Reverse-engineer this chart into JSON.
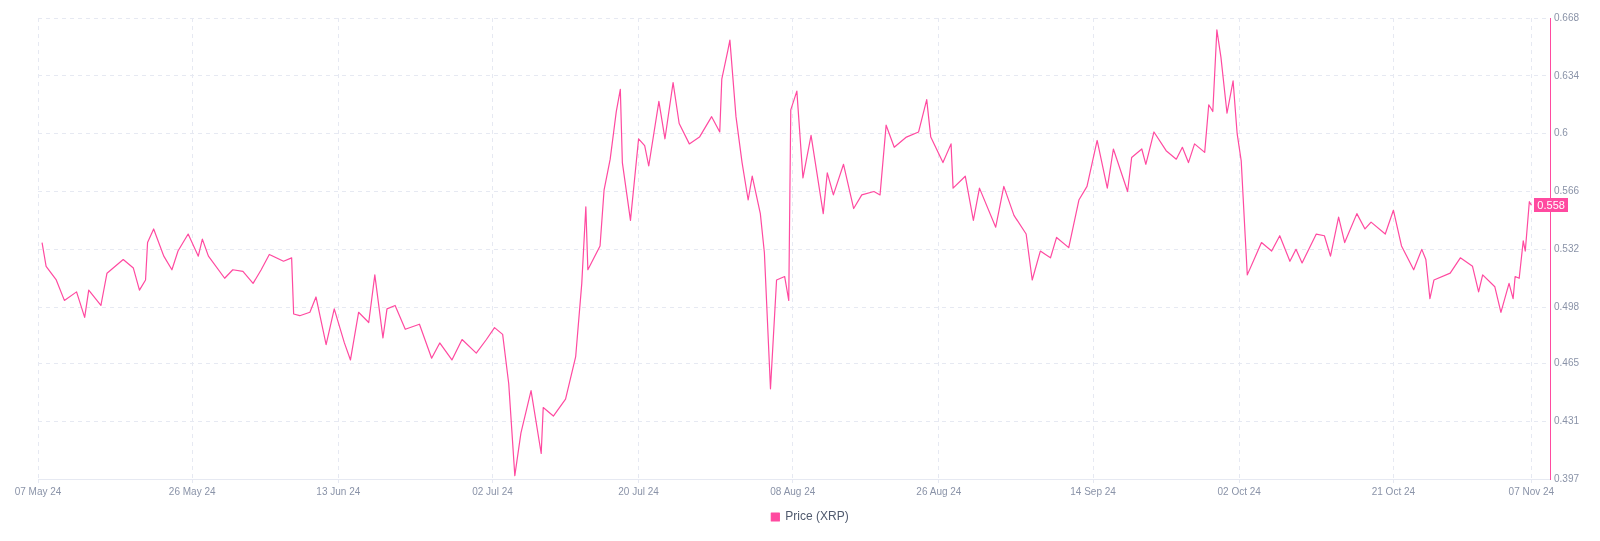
{
  "chart_data": {
    "type": "line",
    "x": [
      "2024-05-07T12:00",
      "2024-05-08",
      "2024-05-09T06:00",
      "2024-05-10T06:00",
      "2024-05-11T18:00",
      "2024-05-12T18:00",
      "2024-05-13T06:00",
      "2024-05-14T18:00",
      "2024-05-15T12:00",
      "2024-05-17T12:00",
      "2024-05-18T18:00",
      "2024-05-19T12:00",
      "2024-05-20T06:00",
      "2024-05-20T12:00",
      "2024-05-21T06:00",
      "2024-05-22T12:00",
      "2024-05-23T12:00",
      "2024-05-24T06:00",
      "2024-05-25T12:00",
      "2024-05-26T18:00",
      "2024-05-27T06:00",
      "2024-05-28",
      "2024-05-30",
      "2024-05-31",
      "2024-06-01T06:00",
      "2024-06-02T12:00",
      "2024-06-03T12:00",
      "2024-06-04T12:00",
      "2024-06-06T06:00",
      "2024-06-07T06:00",
      "2024-06-07T12:00",
      "2024-06-08T06:00",
      "2024-06-09T12:00",
      "2024-06-10T06:00",
      "2024-06-11T12:00",
      "2024-06-12T12:00",
      "2024-06-13T18:00",
      "2024-06-14T12:00",
      "2024-06-15T12:00",
      "2024-06-16T18:00",
      "2024-06-17T12:00",
      "2024-06-18T12:00",
      "2024-06-19",
      "2024-06-20",
      "2024-06-21T06:00",
      "2024-06-23",
      "2024-06-24T12:00",
      "2024-06-25T12:00",
      "2024-06-27",
      "2024-06-28T06:00",
      "2024-06-30",
      "2024-07-01T06:00",
      "2024-07-02T06:00",
      "2024-07-03T06:00",
      "2024-07-04",
      "2024-07-04T18:00",
      "2024-07-05T12:00",
      "2024-07-06T18:00",
      "2024-07-08",
      "2024-07-08T06:00",
      "2024-07-09T12:00",
      "2024-07-11",
      "2024-07-12T06:00",
      "2024-07-13",
      "2024-07-13T12:00",
      "2024-07-13T18:00",
      "2024-07-15T06:00",
      "2024-07-15T18:00",
      "2024-07-16T12:00",
      "2024-07-17T06:00",
      "2024-07-17T18:00",
      "2024-07-18",
      "2024-07-19",
      "2024-07-20",
      "2024-07-20T18:00",
      "2024-07-21T06:00",
      "2024-07-22T12:00",
      "2024-07-23T06:00",
      "2024-07-24T06:00",
      "2024-07-25",
      "2024-07-26T06:00",
      "2024-07-27T12:00",
      "2024-07-29",
      "2024-07-30",
      "2024-07-30T06:00",
      "2024-07-31",
      "2024-07-31T06:00",
      "2024-08-01",
      "2024-08-01T18:00",
      "2024-08-02T12:00",
      "2024-08-03",
      "2024-08-04",
      "2024-08-04T12:00",
      "2024-08-05T06:00",
      "2024-08-06",
      "2024-08-07",
      "2024-08-07T12:00",
      "2024-08-07T18:00",
      "2024-08-08T12:00",
      "2024-08-09T06:00",
      "2024-08-10T06:00",
      "2024-08-11T18:00",
      "2024-08-12T06:00",
      "2024-08-13",
      "2024-08-14T06:00",
      "2024-08-15T12:00",
      "2024-08-16T12:00",
      "2024-08-18",
      "2024-08-18T18:00",
      "2024-08-19T12:00",
      "2024-08-20T12:00",
      "2024-08-22",
      "2024-08-23T12:00",
      "2024-08-24T12:00",
      "2024-08-25",
      "2024-08-26T12:00",
      "2024-08-27T12:00",
      "2024-08-27T18:00",
      "2024-08-29T06:00",
      "2024-08-30T06:00",
      "2024-08-31",
      "2024-09-02",
      "2024-09-03",
      "2024-09-04T06:00",
      "2024-09-05T18:00",
      "2024-09-06T12:00",
      "2024-09-07T12:00",
      "2024-09-08T18:00",
      "2024-09-09T12:00",
      "2024-09-11",
      "2024-09-12T06:00",
      "2024-09-13T06:00",
      "2024-09-14T12:00",
      "2024-09-15T18:00",
      "2024-09-16T12:00",
      "2024-09-18T06:00",
      "2024-09-18T18:00",
      "2024-09-20",
      "2024-09-20T12:00",
      "2024-09-21T12:00",
      "2024-09-23",
      "2024-09-24T06:00",
      "2024-09-25",
      "2024-09-25T18:00",
      "2024-09-26T12:00",
      "2024-09-27T18:00",
      "2024-09-28T06:00",
      "2024-09-28T18:00",
      "2024-09-29T06:00",
      "2024-09-29T18:00",
      "2024-09-30T12:00",
      "2024-10-01T06:00",
      "2024-10-01T18:00",
      "2024-10-02T06:00",
      "2024-10-02T18:00",
      "2024-10-03",
      "2024-10-04T18:00",
      "2024-10-06",
      "2024-10-07",
      "2024-10-08T06:00",
      "2024-10-09",
      "2024-10-09T18:00",
      "2024-10-11T12:00",
      "2024-10-12T12:00",
      "2024-10-13T06:00",
      "2024-10-14T06:00",
      "2024-10-15",
      "2024-10-16T12:00",
      "2024-10-17T12:00",
      "2024-10-18T06:00",
      "2024-10-20",
      "2024-10-21",
      "2024-10-22",
      "2024-10-23T12:00",
      "2024-10-24T12:00",
      "2024-10-25",
      "2024-10-25T12:00",
      "2024-10-26",
      "2024-10-28",
      "2024-10-29T06:00",
      "2024-10-30T18:00",
      "2024-10-31T12:00",
      "2024-11-01",
      "2024-11-02T12:00",
      "2024-11-03T06:00",
      "2024-11-04T06:00",
      "2024-11-04T18:00",
      "2024-11-05",
      "2024-11-05T12:00",
      "2024-11-06",
      "2024-11-06T06:00",
      "2024-11-06T18:00",
      "2024-11-07"
    ],
    "series": [
      {
        "name": "Price (XRP)",
        "color": "#ff4aa0",
        "values": [
          0.536,
          0.522,
          0.514,
          0.502,
          0.507,
          0.492,
          0.508,
          0.499,
          0.518,
          0.526,
          0.521,
          0.508,
          0.514,
          0.536,
          0.544,
          0.528,
          0.52,
          0.531,
          0.541,
          0.528,
          0.538,
          0.528,
          0.515,
          0.52,
          0.519,
          0.512,
          0.52,
          0.529,
          0.525,
          0.527,
          0.494,
          0.493,
          0.495,
          0.504,
          0.476,
          0.497,
          0.477,
          0.467,
          0.495,
          0.489,
          0.517,
          0.48,
          0.497,
          0.499,
          0.485,
          0.488,
          0.468,
          0.477,
          0.467,
          0.479,
          0.471,
          0.479,
          0.486,
          0.482,
          0.453,
          0.399,
          0.424,
          0.449,
          0.412,
          0.439,
          0.434,
          0.444,
          0.469,
          0.512,
          0.557,
          0.52,
          0.534,
          0.567,
          0.585,
          0.613,
          0.626,
          0.583,
          0.549,
          0.597,
          0.593,
          0.581,
          0.619,
          0.597,
          0.63,
          0.606,
          0.594,
          0.598,
          0.61,
          0.601,
          0.632,
          0.649,
          0.655,
          0.61,
          0.583,
          0.561,
          0.575,
          0.553,
          0.53,
          0.45,
          0.514,
          0.516,
          0.502,
          0.614,
          0.625,
          0.574,
          0.599,
          0.553,
          0.577,
          0.564,
          0.582,
          0.556,
          0.564,
          0.566,
          0.564,
          0.605,
          0.592,
          0.598,
          0.601,
          0.62,
          0.598,
          0.583,
          0.594,
          0.568,
          0.575,
          0.549,
          0.568,
          0.545,
          0.569,
          0.552,
          0.541,
          0.514,
          0.531,
          0.527,
          0.539,
          0.533,
          0.561,
          0.569,
          0.596,
          0.568,
          0.591,
          0.566,
          0.586,
          0.591,
          0.582,
          0.601,
          0.59,
          0.585,
          0.592,
          0.583,
          0.594,
          0.589,
          0.617,
          0.613,
          0.661,
          0.645,
          0.612,
          0.631,
          0.6,
          0.584,
          0.539,
          0.517,
          0.536,
          0.531,
          0.54,
          0.525,
          0.532,
          0.524,
          0.541,
          0.54,
          0.528,
          0.551,
          0.536,
          0.553,
          0.544,
          0.548,
          0.541,
          0.555,
          0.534,
          0.52,
          0.532,
          0.526,
          0.503,
          0.514,
          0.518,
          0.527,
          0.522,
          0.507,
          0.517,
          0.51,
          0.495,
          0.512,
          0.503,
          0.516,
          0.515,
          0.537,
          0.531,
          0.56,
          0.558
        ],
        "value_labels": [
          null,
          null,
          null,
          null,
          null,
          null,
          null,
          null,
          null,
          null,
          null,
          null,
          null,
          null,
          null,
          null,
          null,
          null,
          null,
          null,
          null,
          null,
          null,
          null,
          null,
          null,
          null,
          null,
          null,
          null,
          null,
          null,
          null,
          null,
          null,
          null,
          null,
          null,
          null,
          null,
          null,
          null,
          null,
          null,
          null,
          null,
          null,
          null,
          null,
          null,
          null,
          null,
          null,
          null,
          null,
          null,
          null,
          null,
          null,
          null,
          null,
          null,
          null,
          null,
          null,
          null,
          null,
          null,
          null,
          null,
          null,
          null,
          null,
          null,
          null,
          null,
          null,
          null,
          null,
          null,
          null,
          null,
          null,
          null,
          null,
          null,
          null,
          null,
          null,
          null,
          null,
          null,
          null,
          null,
          null,
          null,
          null,
          null,
          null,
          null,
          null,
          null,
          null,
          null,
          null,
          null,
          null,
          null,
          null,
          null,
          null,
          null,
          null,
          null,
          null,
          null,
          null,
          null,
          null,
          null,
          null,
          null,
          null,
          null,
          null,
          null,
          null,
          null,
          null,
          null,
          null,
          null,
          null,
          null,
          null,
          null,
          null,
          null,
          null,
          null,
          null,
          null,
          null,
          null,
          null,
          null,
          null,
          null,
          null,
          null,
          null,
          null,
          null,
          null,
          null,
          null,
          null,
          null,
          null,
          null,
          null,
          null,
          null,
          null,
          null,
          null,
          null,
          null,
          null,
          null,
          null,
          null,
          null,
          null,
          null,
          null,
          null,
          null,
          null,
          null,
          null,
          null,
          null,
          null,
          null,
          null,
          null,
          null,
          null,
          null,
          null,
          null,
          "0.558"
        ]
      }
    ],
    "xlim": [
      "2024-05-07",
      "2024-11-09T10:00"
    ],
    "xticks": [
      {
        "value": "2024-05-07",
        "label": "07 May 24"
      },
      {
        "value": "2024-05-26",
        "label": "26 May 24"
      },
      {
        "value": "2024-06-13",
        "label": "13 Jun 24"
      },
      {
        "value": "2024-07-02",
        "label": "02 Jul 24"
      },
      {
        "value": "2024-07-20",
        "label": "20 Jul 24"
      },
      {
        "value": "2024-08-08",
        "label": "08 Aug 24"
      },
      {
        "value": "2024-08-26",
        "label": "26 Aug 24"
      },
      {
        "value": "2024-09-14",
        "label": "14 Sep 24"
      },
      {
        "value": "2024-10-02",
        "label": "02 Oct 24"
      },
      {
        "value": "2024-10-21",
        "label": "21 Oct 24"
      },
      {
        "value": "2024-11-07",
        "label": "07 Nov 24"
      }
    ],
    "ylim": [
      0.397,
      0.668
    ],
    "yticks": [
      0.397,
      0.431,
      0.465,
      0.498,
      0.532,
      0.566,
      0.6,
      0.634,
      0.668
    ],
    "grid": true,
    "legend": "bottom",
    "marker": "none",
    "line_style": "solid"
  }
}
